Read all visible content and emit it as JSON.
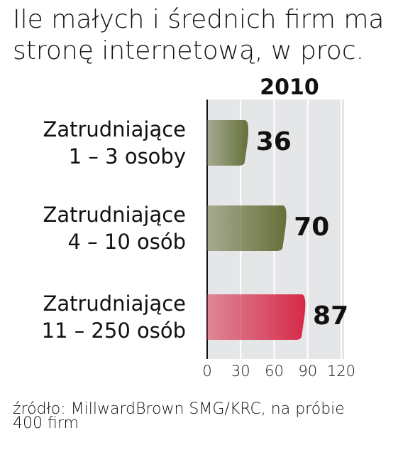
{
  "chart_data": {
    "type": "bar",
    "orientation": "horizontal",
    "title": "Ile małych i średnich firm ma\nstronę internetową, w proc.",
    "subtitle": "2010",
    "categories": [
      "Zatrudniające\n1 – 3 osoby",
      "Zatrudniające\n4 – 10 osób",
      "Zatrudniające\n11 – 250 osób"
    ],
    "values": [
      36,
      70,
      87
    ],
    "colors": [
      "#66703a",
      "#66703a",
      "#d62a48"
    ],
    "xlim": [
      0,
      120
    ],
    "xticks": [
      0,
      30,
      60,
      90,
      120
    ],
    "grid": true,
    "source": "źródło: MillwardBrown SMG/KRC, na próbie\n400 firm"
  }
}
